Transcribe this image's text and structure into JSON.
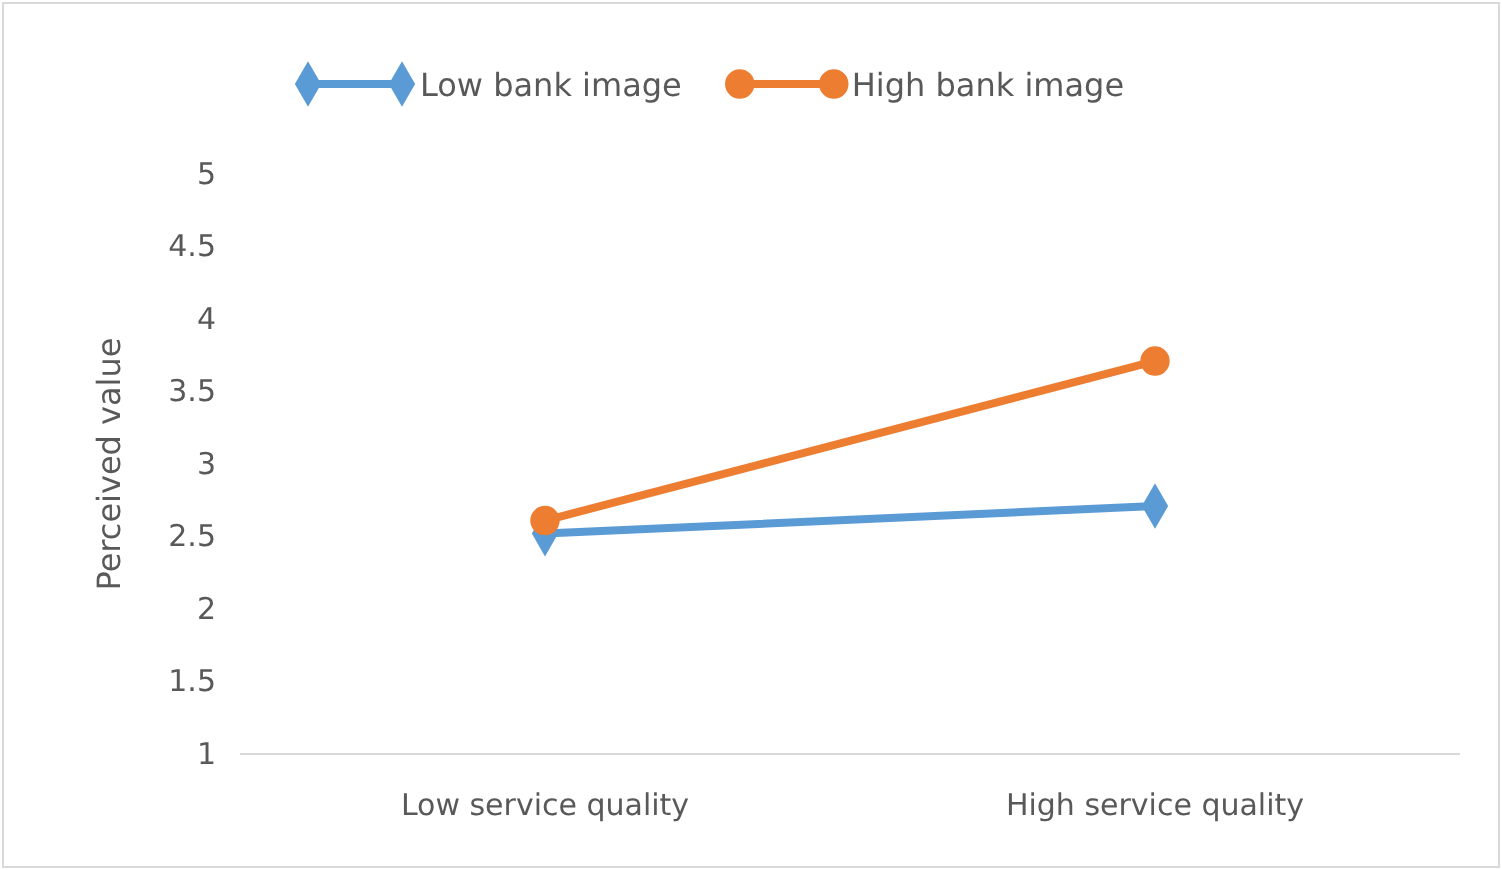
{
  "chart_data": {
    "type": "line",
    "ylabel": "Perceived value",
    "categories": [
      "Low service quality",
      "High service quality"
    ],
    "series": [
      {
        "name": "Low bank image",
        "color": "#5b9bd5",
        "values": [
          2.52,
          2.71
        ],
        "marker": "diamond"
      },
      {
        "name": "High bank image",
        "color": "#ed7d31",
        "values": [
          2.61,
          3.71
        ],
        "marker": "circle"
      }
    ],
    "ylim": [
      1,
      5
    ],
    "yticks": [
      1,
      {
        "value": 1.5,
        "label": "1.5"
      },
      2,
      {
        "value": 2.5,
        "label": "2.5"
      },
      3,
      {
        "value": 3.5,
        "label": "3.5"
      },
      4,
      {
        "value": 4.5,
        "label": "4.5"
      },
      5
    ],
    "legend": "top",
    "line_style": "solid"
  }
}
